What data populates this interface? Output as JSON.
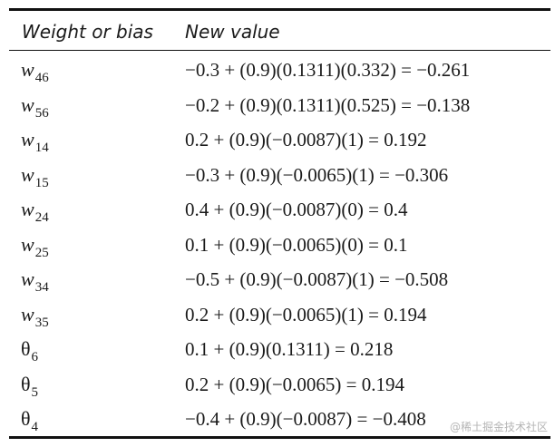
{
  "table": {
    "headers": {
      "weight_or_bias": "Weight or bias",
      "new_value": "New value"
    },
    "rows": [
      {
        "symbol": "w",
        "subscript": "46",
        "value": "−0.3 + (0.9)(0.1311)(0.332) = −0.261"
      },
      {
        "symbol": "w",
        "subscript": "56",
        "value": "−0.2 + (0.9)(0.1311)(0.525) = −0.138"
      },
      {
        "symbol": "w",
        "subscript": "14",
        "value": "0.2 + (0.9)(−0.0087)(1) = 0.192"
      },
      {
        "symbol": "w",
        "subscript": "15",
        "value": "−0.3 + (0.9)(−0.0065)(1) = −0.306"
      },
      {
        "symbol": "w",
        "subscript": "24",
        "value": "0.4 + (0.9)(−0.0087)(0) = 0.4"
      },
      {
        "symbol": "w",
        "subscript": "25",
        "value": "0.1 + (0.9)(−0.0065)(0) = 0.1"
      },
      {
        "symbol": "w",
        "subscript": "34",
        "value": "−0.5 + (0.9)(−0.0087)(1) = −0.508"
      },
      {
        "symbol": "w",
        "subscript": "35",
        "value": "0.2 + (0.9)(−0.0065)(1) = 0.194"
      },
      {
        "symbol": "θ",
        "subscript": "6",
        "value": "0.1 + (0.9)(0.1311) = 0.218"
      },
      {
        "symbol": "θ",
        "subscript": "5",
        "value": "0.2 + (0.9)(−0.0065) = 0.194"
      },
      {
        "symbol": "θ",
        "subscript": "4",
        "value": "−0.4 + (0.9)(−0.0087) = −0.408"
      }
    ]
  },
  "watermark": "@稀土掘金技术社区"
}
